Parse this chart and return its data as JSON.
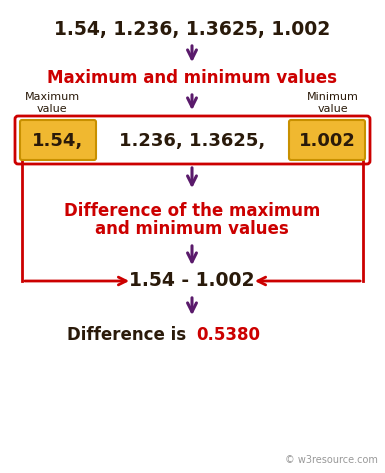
{
  "background_color": "#ffffff",
  "title_text": "1.54, 1.236, 1.3625, 1.002",
  "title_color": "#2a1a0a",
  "arrow_color": "#5a1a6b",
  "label1": "Maximum and minimum values",
  "label1_color": "#cc0000",
  "max_label": "Maximum\nvalue",
  "min_label": "Minimum\nvalue",
  "label_color": "#2a1a0a",
  "highlight_color": "#f0b830",
  "highlight_border": "#c89000",
  "box_border_color": "#cc0000",
  "label2_line1": "Difference of the maximum",
  "label2_line2": "and minimum values",
  "label2_color": "#cc0000",
  "subtraction": "1.54 - 1.002",
  "subtraction_color": "#2a1a0a",
  "result_prefix": "Difference is ",
  "result_value": "0.5380",
  "result_prefix_color": "#2a1a0a",
  "result_value_color": "#cc0000",
  "watermark": "© w3resource.com",
  "watermark_color": "#999999",
  "num154": "1.54,",
  "num_middle": "1.236, 1.3625,",
  "num1002": "1.002"
}
